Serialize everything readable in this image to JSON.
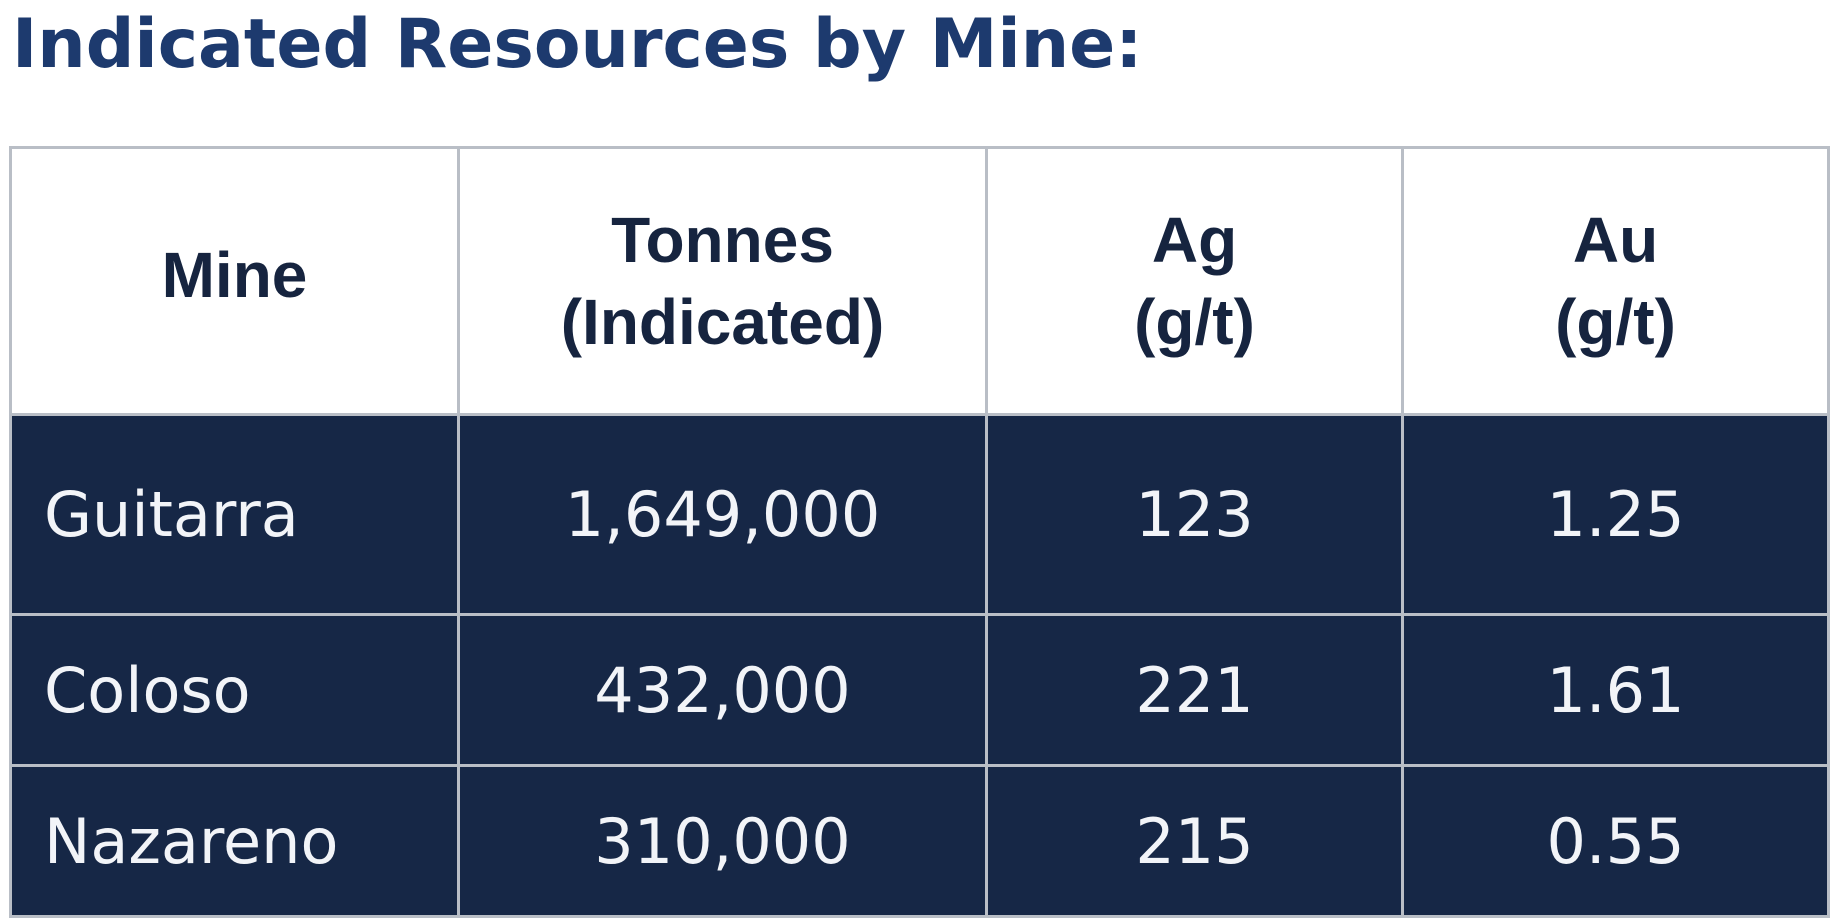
{
  "title": "Indicated Resources by Mine:",
  "table": {
    "headers": [
      {
        "line1": "Mine",
        "line2": ""
      },
      {
        "line1": "Tonnes",
        "line2": "(Indicated)"
      },
      {
        "line1": "Ag",
        "line2": "(g/t)"
      },
      {
        "line1": "Au",
        "line2": "(g/t)"
      }
    ],
    "rows": [
      {
        "mine": "Guitarra",
        "tonnes": "1,649,000",
        "ag": "123",
        "au": "1.25"
      },
      {
        "mine": "Coloso",
        "tonnes": "432,000",
        "ag": "221",
        "au": "1.61"
      },
      {
        "mine": "Nazareno",
        "tonnes": "310,000",
        "ag": "215",
        "au": "0.55"
      }
    ]
  },
  "colors": {
    "title": "#1d3a6e",
    "header_text": "#16243f",
    "row_background": "#162746",
    "row_text": "#f2f4f8",
    "border": "#b9bec6"
  }
}
